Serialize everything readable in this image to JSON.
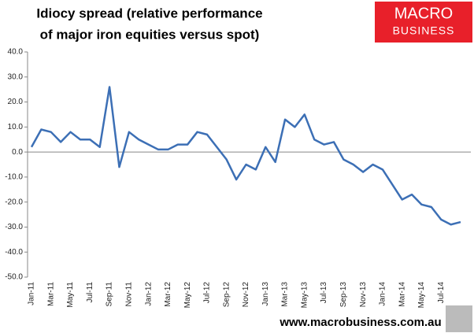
{
  "chart_data": {
    "type": "line",
    "title_lines": [
      "Idiocy spread (relative performance",
      "of major iron equities versus spot)"
    ],
    "logo": [
      "MACRO",
      "BUSINESS"
    ],
    "footer": "www.macrobusiness.com.au",
    "categories": [
      "Jan-11",
      null,
      "Mar-11",
      null,
      "May-11",
      null,
      "Jul-11",
      null,
      "Sep-11",
      null,
      "Nov-11",
      null,
      "Jan-12",
      null,
      "Mar-12",
      null,
      "May-12",
      null,
      "Jul-12",
      null,
      "Sep-12",
      null,
      "Nov-12",
      null,
      "Jan-13",
      null,
      "Mar-13",
      null,
      "May-13",
      null,
      "Jul-13",
      null,
      "Sep-13",
      null,
      "Nov-13",
      null,
      "Jan-14",
      null,
      "Mar-14",
      null,
      "May-14",
      null,
      "Jul-14",
      null,
      null
    ],
    "series": [
      {
        "name": "Idiocy spread",
        "color": "#3c6fb5",
        "values": [
          2,
          9,
          8,
          4,
          8,
          5,
          5,
          2,
          26,
          -6,
          8,
          5,
          3,
          1,
          1,
          3,
          3,
          8,
          7,
          2,
          -3,
          -11,
          -5,
          -7,
          2,
          -4,
          13,
          10,
          15,
          5,
          3,
          4,
          -3,
          -5,
          -8,
          -5,
          -7,
          -13,
          -19,
          -17,
          -21,
          -22,
          -27,
          -29,
          -28
        ]
      }
    ],
    "ylim": [
      -50,
      40
    ],
    "yticks": [
      {
        "value": 40,
        "label": "40.0"
      },
      {
        "value": 30,
        "label": "30.0"
      },
      {
        "value": 20,
        "label": "20.0"
      },
      {
        "value": 10,
        "label": "10.0"
      },
      {
        "value": 0,
        "label": "0.0"
      },
      {
        "value": -10,
        "label": "-10.0"
      },
      {
        "value": -20,
        "label": "-20.0"
      },
      {
        "value": -30,
        "label": "-30.0"
      },
      {
        "value": -40,
        "label": "-40.0"
      },
      {
        "value": -50,
        "label": "-50.0"
      }
    ],
    "grid": false
  }
}
